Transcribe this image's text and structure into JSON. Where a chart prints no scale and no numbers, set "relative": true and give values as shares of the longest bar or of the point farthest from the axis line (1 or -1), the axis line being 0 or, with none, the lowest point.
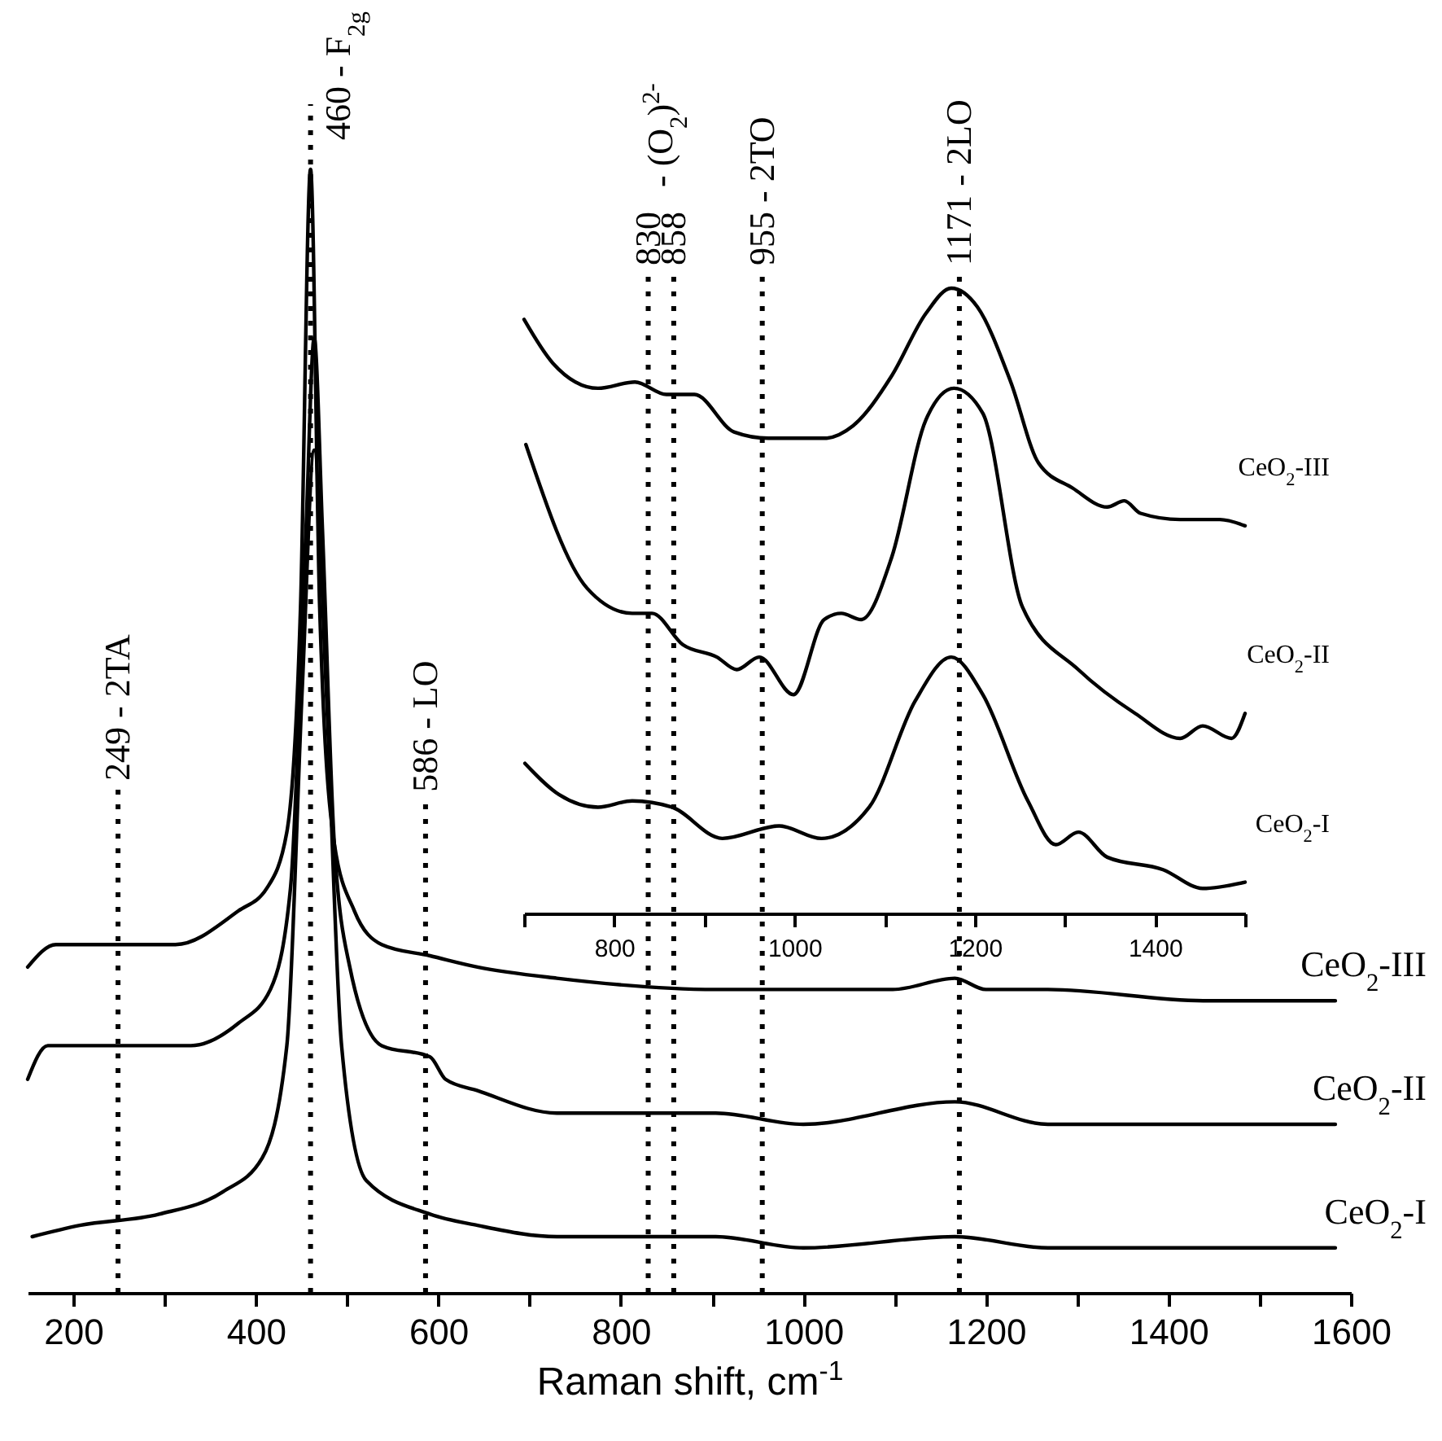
{
  "chart_data": [
    {
      "type": "line",
      "xlabel": "Raman shift, cm$^{-1}$",
      "relative": true,
      "xlim": [
        150,
        1600
      ],
      "xticks": [
        200,
        {
          "value": 300,
          "label": null
        },
        400,
        {
          "value": 500,
          "label": null
        },
        600,
        {
          "value": 700,
          "label": null
        },
        800,
        {
          "value": 900,
          "label": null
        },
        1000,
        {
          "value": 1100,
          "label": null
        },
        1200,
        {
          "value": 1300,
          "label": null
        },
        1400,
        {
          "value": 1500,
          "label": null
        },
        1600
      ],
      "series": [
        {
          "name": "CeO$_{2}$-III",
          "color": "#000000",
          "x": [
            150,
            181,
            251,
            312,
            381,
            412,
            434,
            449,
            460,
            470,
            486,
            508,
            538,
            591,
            643,
            730,
            904,
            1000,
            1098,
            1166,
            1200,
            1268,
            1438,
            1583
          ],
          "values": [
            0.29,
            0.31,
            0.31,
            0.31,
            0.34,
            0.36,
            0.41,
            0.61,
            1,
            0.61,
            0.4,
            0.34,
            0.31,
            0.3,
            0.29,
            0.28,
            0.27,
            0.27,
            0.27,
            0.28,
            0.27,
            0.27,
            0.26,
            0.26
          ]
        },
        {
          "name": "CeO$_{2}$-II",
          "color": "#000000",
          "x": [
            150,
            172,
            251,
            329,
            381,
            416,
            438,
            455,
            464,
            473,
            486,
            503,
            538,
            591,
            608,
            643,
            730,
            904,
            1000,
            1166,
            1268,
            1583
          ],
          "values": [
            0.19,
            0.22,
            0.22,
            0.22,
            0.24,
            0.27,
            0.36,
            0.68,
            0.85,
            0.68,
            0.4,
            0.29,
            0.22,
            0.21,
            0.19,
            0.18,
            0.16,
            0.16,
            0.15,
            0.17,
            0.15,
            0.15
          ]
        },
        {
          "name": "CeO$_{2}$-I",
          "color": "#000000",
          "x": [
            155,
            207,
            294,
            364,
            407,
            434,
            451,
            464,
            477,
            494,
            521,
            591,
            643,
            730,
            904,
            1000,
            1166,
            1268,
            1583
          ],
          "values": [
            0.05,
            0.06,
            0.07,
            0.09,
            0.12,
            0.22,
            0.54,
            0.75,
            0.54,
            0.22,
            0.1,
            0.07,
            0.06,
            0.05,
            0.05,
            0.04,
            0.05,
            0.04,
            0.04
          ]
        }
      ],
      "ref_lines": [
        {
          "axis": "x",
          "value": 249,
          "label": "249 - 2TA",
          "color": "#000000",
          "line_style": "dotted"
        },
        {
          "axis": "x",
          "value": 460,
          "label": "460 - F$_{2g}$",
          "color": "#000000",
          "line_style": "dotted"
        },
        {
          "axis": "x",
          "value": 586,
          "label": "586 - LO",
          "color": "#000000",
          "line_style": "dotted"
        },
        {
          "axis": "x",
          "value": 830,
          "label": "830",
          "color": "#000000",
          "line_style": "dotted"
        },
        {
          "axis": "x",
          "value": 858,
          "label": "858",
          "color": "#000000",
          "line_style": "dotted"
        },
        {
          "axis": "x",
          "value": 955,
          "label": "955 - 2TO",
          "color": "#000000",
          "line_style": "dotted"
        },
        {
          "axis": "x",
          "value": 1171,
          "label": "1171 - 2LO",
          "color": "#000000",
          "line_style": "dotted"
        }
      ],
      "annotations": [
        "- (O$_{2}$)$^{2-}$"
      ]
    },
    {
      "type": "line",
      "relative": true,
      "xlim": [
        700,
        1500
      ],
      "xticks": [
        {
          "value": 700,
          "label": null
        },
        800,
        {
          "value": 900,
          "label": null
        },
        1000,
        {
          "value": 1100,
          "label": null
        },
        1200,
        {
          "value": 1300,
          "label": null
        },
        1400,
        {
          "value": 1500,
          "label": null
        }
      ],
      "series": [
        {
          "name": "CeO$_{2}$-III",
          "color": "#000000",
          "x": [
            700,
            732,
            782,
            823,
            858,
            889,
            933,
            971,
            1033,
            1065,
            1108,
            1146,
            1174,
            1203,
            1240,
            1271,
            1309,
            1347,
            1366,
            1384,
            1428,
            1472,
            1500
          ],
          "values": [
            0.95,
            0.88,
            0.84,
            0.85,
            0.83,
            0.83,
            0.77,
            0.76,
            0.76,
            0.78,
            0.86,
            0.96,
            1,
            0.97,
            0.85,
            0.72,
            0.68,
            0.65,
            0.66,
            0.64,
            0.63,
            0.63,
            0.62
          ]
        },
        {
          "name": "CeO$_{2}$-II",
          "color": "#000000",
          "x": [
            702,
            770,
            820,
            842,
            876,
            914,
            936,
            961,
            999,
            1033,
            1052,
            1074,
            1108,
            1146,
            1177,
            1209,
            1253,
            1315,
            1378,
            1428,
            1453,
            1485,
            1500
          ],
          "values": [
            0.75,
            0.52,
            0.48,
            0.48,
            0.43,
            0.41,
            0.39,
            0.41,
            0.35,
            0.47,
            0.48,
            0.47,
            0.57,
            0.79,
            0.84,
            0.8,
            0.49,
            0.39,
            0.32,
            0.28,
            0.3,
            0.28,
            0.32
          ]
        },
        {
          "name": "CeO$_{2}$-I",
          "color": "#000000",
          "x": [
            701,
            739,
            782,
            820,
            864,
            920,
            983,
            1030,
            1083,
            1134,
            1174,
            1209,
            1259,
            1290,
            1315,
            1347,
            1409,
            1453,
            1500
          ],
          "values": [
            0.24,
            0.19,
            0.17,
            0.18,
            0.17,
            0.12,
            0.14,
            0.12,
            0.17,
            0.34,
            0.41,
            0.35,
            0.18,
            0.11,
            0.13,
            0.09,
            0.07,
            0.04,
            0.05
          ]
        }
      ]
    }
  ]
}
